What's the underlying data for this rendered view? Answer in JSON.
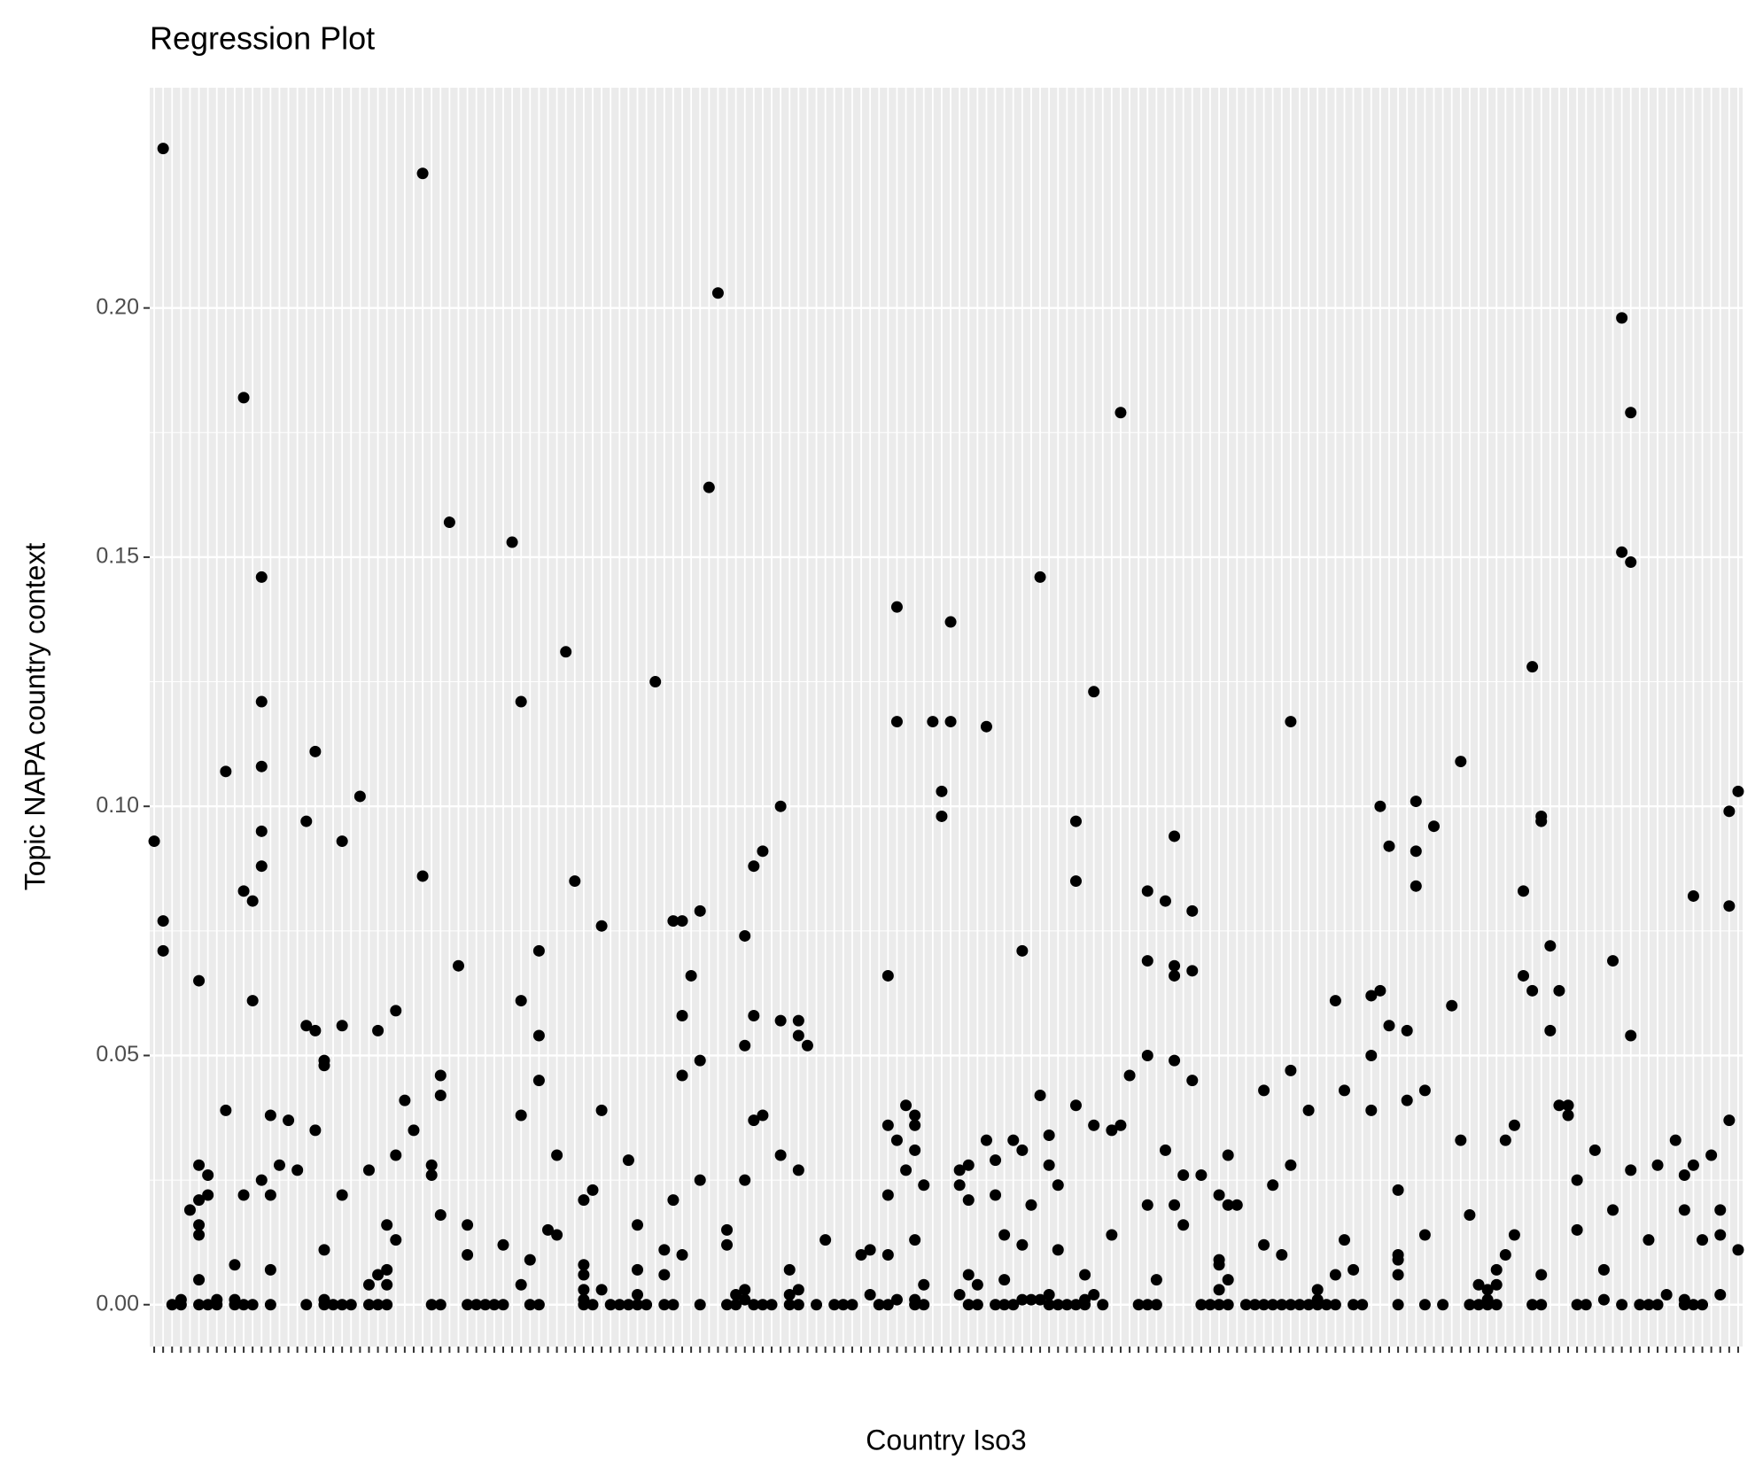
{
  "chart_data": {
    "type": "scatter",
    "title": "Regression Plot",
    "x_label": "Country Iso3",
    "y_label": "Topic NAPA country context",
    "categories": [
      null,
      null,
      null,
      null,
      null,
      null,
      null,
      null,
      null,
      null,
      null,
      null,
      null,
      null,
      null,
      null,
      null,
      null,
      null,
      null,
      null,
      null,
      null,
      null,
      null,
      null,
      null,
      null,
      null,
      null,
      null,
      null,
      null,
      null,
      null,
      null,
      null,
      null,
      null,
      null,
      null,
      null,
      null,
      null,
      null,
      null,
      null,
      null,
      null,
      null,
      null,
      null,
      null,
      null,
      null,
      null,
      null,
      null,
      null,
      null,
      null,
      null,
      null,
      null,
      null,
      null,
      null,
      null,
      null,
      null,
      null,
      null,
      null,
      null,
      null,
      null,
      null,
      null,
      null,
      null,
      null,
      null,
      null,
      null,
      null,
      null,
      null,
      null,
      null,
      null,
      null,
      null,
      null,
      null,
      null,
      null,
      null,
      null,
      null,
      null,
      null,
      null,
      null,
      null,
      null,
      null,
      null,
      null,
      null,
      null,
      null,
      null,
      null,
      null,
      null,
      null,
      null,
      null,
      null,
      null,
      null,
      null,
      null,
      null,
      null,
      null,
      null,
      null,
      null,
      null,
      null,
      null,
      null,
      null,
      null,
      null,
      null,
      null,
      null,
      null,
      null,
      null,
      null,
      null,
      null,
      null,
      null,
      null,
      null,
      null,
      null,
      null,
      null,
      null,
      null,
      null,
      null,
      null,
      null,
      null,
      null,
      null,
      null,
      null,
      null,
      null,
      null,
      null,
      null,
      null,
      null,
      null,
      null,
      null,
      null,
      null,
      null,
      null
    ],
    "xlim": [
      0.5,
      178.5
    ],
    "x": [
      1,
      2,
      2,
      2,
      3,
      4,
      4,
      5,
      6,
      6,
      6,
      6,
      6,
      6,
      6,
      7,
      7,
      7,
      8,
      8,
      9,
      9,
      10,
      10,
      10,
      11,
      11,
      11,
      11,
      12,
      12,
      12,
      13,
      13,
      13,
      13,
      13,
      13,
      14,
      14,
      14,
      14,
      15,
      16,
      17,
      18,
      18,
      18,
      19,
      19,
      19,
      20,
      20,
      20,
      20,
      20,
      21,
      22,
      22,
      22,
      22,
      23,
      24,
      25,
      25,
      25,
      26,
      26,
      26,
      27,
      27,
      27,
      27,
      28,
      28,
      28,
      29,
      30,
      31,
      31,
      32,
      32,
      32,
      33,
      33,
      33,
      33,
      34,
      35,
      36,
      36,
      36,
      37,
      38,
      39,
      40,
      40,
      41,
      42,
      42,
      42,
      42,
      43,
      43,
      44,
      44,
      44,
      44,
      45,
      46,
      46,
      47,
      48,
      49,
      49,
      49,
      49,
      49,
      49,
      50,
      50,
      51,
      51,
      51,
      52,
      53,
      54,
      54,
      55,
      55,
      55,
      55,
      56,
      57,
      58,
      58,
      58,
      59,
      59,
      59,
      60,
      60,
      60,
      60,
      61,
      62,
      62,
      62,
      62,
      63,
      64,
      65,
      65,
      65,
      66,
      66,
      67,
      67,
      67,
      67,
      67,
      68,
      68,
      68,
      68,
      69,
      69,
      69,
      70,
      71,
      71,
      71,
      72,
      72,
      72,
      73,
      73,
      73,
      73,
      73,
      74,
      75,
      76,
      77,
      78,
      79,
      80,
      81,
      81,
      82,
      83,
      83,
      83,
      83,
      83,
      84,
      84,
      84,
      84,
      85,
      85,
      86,
      86,
      86,
      86,
      86,
      86,
      87,
      87,
      87,
      88,
      89,
      89,
      90,
      90,
      91,
      91,
      91,
      92,
      92,
      92,
      92,
      93,
      93,
      94,
      94,
      95,
      95,
      95,
      96,
      96,
      96,
      97,
      97,
      98,
      98,
      98,
      98,
      99,
      99,
      100,
      100,
      100,
      101,
      101,
      101,
      101,
      102,
      102,
      102,
      103,
      104,
      104,
      104,
      104,
      105,
      105,
      105,
      106,
      106,
      106,
      107,
      108,
      108,
      109,
      109,
      110,
      111,
      112,
      112,
      112,
      112,
      112,
      113,
      113,
      114,
      114,
      115,
      115,
      115,
      115,
      115,
      116,
      116,
      117,
      117,
      117,
      118,
      118,
      119,
      120,
      120,
      120,
      120,
      120,
      121,
      121,
      121,
      121,
      122,
      123,
      124,
      125,
      125,
      125,
      126,
      126,
      127,
      127,
      128,
      128,
      128,
      128,
      129,
      130,
      130,
      131,
      131,
      131,
      132,
      133,
      133,
      133,
      134,
      134,
      135,
      135,
      136,
      137,
      137,
      137,
      138,
      138,
      139,
      139,
      140,
      140,
      140,
      140,
      140,
      141,
      141,
      142,
      142,
      142,
      143,
      143,
      143,
      144,
      145,
      146,
      147,
      147,
      148,
      148,
      149,
      149,
      150,
      150,
      150,
      151,
      151,
      151,
      152,
      152,
      153,
      153,
      154,
      154,
      155,
      155,
      155,
      156,
      156,
      156,
      156,
      157,
      157,
      158,
      158,
      159,
      159,
      160,
      160,
      160,
      161,
      162,
      163,
      163,
      164,
      164,
      165,
      165,
      165,
      166,
      166,
      166,
      166,
      167,
      168,
      168,
      169,
      169,
      170,
      171,
      172,
      172,
      172,
      172,
      173,
      173,
      173,
      174,
      174,
      175,
      176,
      176,
      176,
      177,
      177,
      177,
      178,
      178
    ],
    "values": [
      0.093,
      0.232,
      0.077,
      0.071,
      0,
      0.001,
      0,
      0.019,
      0.065,
      0.028,
      0.021,
      0.016,
      0.014,
      0.005,
      0,
      0.026,
      0.022,
      0,
      0.001,
      0,
      0.107,
      0.039,
      0.008,
      0.001,
      0,
      0.182,
      0.083,
      0.022,
      0,
      0.081,
      0.061,
      0,
      0.146,
      0.121,
      0.108,
      0.095,
      0.088,
      0.025,
      0.038,
      0.022,
      0.007,
      0,
      0.028,
      0.037,
      0.027,
      0.097,
      0.056,
      0,
      0.111,
      0.055,
      0.035,
      0.049,
      0.048,
      0.011,
      0.001,
      0,
      0,
      0.093,
      0.056,
      0.022,
      0,
      0,
      0.102,
      0.027,
      0.004,
      0,
      0.055,
      0.006,
      0,
      0.016,
      0.007,
      0.004,
      0,
      0.059,
      0.03,
      0.013,
      0.041,
      0.035,
      0.227,
      0.086,
      0.028,
      0.026,
      0,
      0.046,
      0.042,
      0.018,
      0,
      0.157,
      0.068,
      0.016,
      0.01,
      0,
      0,
      0,
      0,
      0.012,
      0,
      0.153,
      0.121,
      0.061,
      0.038,
      0.004,
      0.009,
      0,
      0.071,
      0.054,
      0.045,
      0,
      0.015,
      0.03,
      0.014,
      0.131,
      0.085,
      0.021,
      0.008,
      0.006,
      0.003,
      0.001,
      0,
      0.023,
      0,
      0.076,
      0.039,
      0.003,
      0,
      0,
      0.029,
      0,
      0.016,
      0.007,
      0.002,
      0,
      0,
      0.125,
      0.011,
      0.006,
      0,
      0.077,
      0.021,
      0,
      0.077,
      0.058,
      0.046,
      0.01,
      0.066,
      0.079,
      0.049,
      0.025,
      0,
      0.164,
      0.203,
      0.015,
      0.012,
      0,
      0.002,
      0,
      0.074,
      0.052,
      0.025,
      0.003,
      0.001,
      0.088,
      0.058,
      0.037,
      0,
      0.091,
      0.038,
      0,
      0,
      0.1,
      0.057,
      0.03,
      0.007,
      0.002,
      0,
      0.057,
      0.054,
      0.027,
      0.003,
      0,
      0.052,
      0,
      0.013,
      0,
      0,
      0,
      0.01,
      0.011,
      0.002,
      0,
      0.066,
      0.036,
      0.022,
      0.01,
      0,
      0.14,
      0.117,
      0.033,
      0.001,
      0.04,
      0.027,
      0.038,
      0.036,
      0.031,
      0.013,
      0.001,
      0,
      0.024,
      0.004,
      0,
      0.117,
      0.103,
      0.098,
      0.137,
      0.117,
      0.027,
      0.024,
      0.002,
      0.028,
      0.021,
      0.006,
      0,
      0.004,
      0,
      0.116,
      0.033,
      0.029,
      0.022,
      0,
      0.014,
      0.005,
      0,
      0.033,
      0,
      0.071,
      0.031,
      0.012,
      0.001,
      0.02,
      0.001,
      0.146,
      0.042,
      0.001,
      0.034,
      0.028,
      0.002,
      0,
      0.024,
      0.011,
      0,
      0,
      0.097,
      0.085,
      0.04,
      0,
      0.006,
      0.001,
      0,
      0.123,
      0.036,
      0.002,
      0,
      0.035,
      0.014,
      0.179,
      0.036,
      0.046,
      0,
      0.083,
      0.069,
      0.05,
      0.02,
      0,
      0.005,
      0,
      0.081,
      0.031,
      0.094,
      0.068,
      0.066,
      0.049,
      0.02,
      0.016,
      0.026,
      0.079,
      0.067,
      0.045,
      0.026,
      0,
      0,
      0.022,
      0.009,
      0.008,
      0.003,
      0,
      0.03,
      0.02,
      0.005,
      0,
      0.02,
      0,
      0,
      0.043,
      0.012,
      0,
      0.024,
      0,
      0.01,
      0,
      0.117,
      0.047,
      0.028,
      0,
      0,
      0.039,
      0,
      0.003,
      0.001,
      0,
      0,
      0.061,
      0.006,
      0,
      0.043,
      0.013,
      0.007,
      0,
      0,
      0.062,
      0.05,
      0.039,
      0.1,
      0.063,
      0.092,
      0.056,
      0.023,
      0.01,
      0.009,
      0.006,
      0,
      0.055,
      0.041,
      0.101,
      0.091,
      0.084,
      0.043,
      0.014,
      0,
      0.096,
      0,
      0.06,
      0.109,
      0.033,
      0.018,
      0,
      0.004,
      0,
      0.003,
      0.001,
      0,
      0.007,
      0.004,
      0,
      0.033,
      0.01,
      0.036,
      0.014,
      0.083,
      0.066,
      0.128,
      0.063,
      0,
      0.098,
      0.097,
      0.006,
      0,
      0.072,
      0.055,
      0.063,
      0.04,
      0.04,
      0.038,
      0.025,
      0.015,
      0,
      0,
      0.031,
      0.007,
      0.001,
      0.069,
      0.019,
      0.198,
      0.151,
      0,
      0.179,
      0.149,
      0.054,
      0.027,
      0,
      0.013,
      0,
      0.028,
      0,
      0.002,
      0.033,
      0.026,
      0.019,
      0.001,
      0,
      0.082,
      0.028,
      0,
      0.013,
      0,
      0.03,
      0.019,
      0.014,
      0.002,
      0.099,
      0.08,
      0.037,
      0.103,
      0.011
    ],
    "color": "#000000",
    "ylim": [
      -0.0084,
      0.2442
    ],
    "yticks": [
      {
        "value": 0,
        "label": "0.00"
      },
      {
        "value": 0.05,
        "label": "0.05"
      },
      {
        "value": 0.1,
        "label": "0.10"
      },
      {
        "value": 0.15,
        "label": "0.15"
      },
      {
        "value": 0.2,
        "label": "0.20"
      }
    ],
    "grid": true
  }
}
